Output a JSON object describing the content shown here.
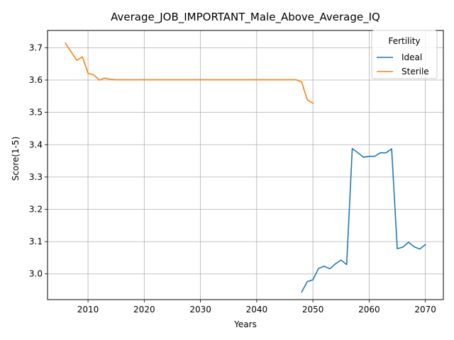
{
  "chart_data": {
    "type": "line",
    "title": "Average_JOB_IMPORTANT_Male_Above_Average_IQ",
    "xlabel": "Years",
    "ylabel": "Score(1-5)",
    "xlim": [
      2002.8,
      2073.2
    ],
    "ylim": [
      2.9205,
      3.7535
    ],
    "xticks": [
      2010,
      2020,
      2030,
      2040,
      2050,
      2060,
      2070
    ],
    "yticks": [
      3.0,
      3.1,
      3.2,
      3.3,
      3.4,
      3.5,
      3.6,
      3.7
    ],
    "ytick_labels": [
      "3.0",
      "3.1",
      "3.2",
      "3.3",
      "3.4",
      "3.5",
      "3.6",
      "3.7"
    ],
    "grid": true,
    "legend": {
      "title": "Fertility",
      "placement": "top-right"
    },
    "series": [
      {
        "name": "Ideal",
        "color": "#1f77b4",
        "x": [
          2048,
          2049,
          2050,
          2051,
          2052,
          2053,
          2054,
          2055,
          2056,
          2057,
          2058,
          2059,
          2060,
          2061,
          2062,
          2063,
          2064,
          2065,
          2066,
          2067,
          2068,
          2069,
          2070
        ],
        "y": [
          2.944,
          2.976,
          2.982,
          3.017,
          3.024,
          3.016,
          3.031,
          3.043,
          3.029,
          3.388,
          3.375,
          3.361,
          3.364,
          3.364,
          3.375,
          3.375,
          3.387,
          3.078,
          3.083,
          3.098,
          3.084,
          3.077,
          3.091
        ]
      },
      {
        "name": "Sterile",
        "color": "#ff7f0e",
        "x": [
          2006,
          2007,
          2008,
          2009,
          2010,
          2011,
          2012,
          2013,
          2014,
          2015,
          2016,
          2017,
          2018,
          2019,
          2020,
          2021,
          2022,
          2023,
          2024,
          2025,
          2026,
          2027,
          2028,
          2029,
          2030,
          2031,
          2032,
          2033,
          2034,
          2035,
          2036,
          2037,
          2038,
          2039,
          2040,
          2041,
          2042,
          2043,
          2044,
          2045,
          2046,
          2047,
          2048,
          2049,
          2050
        ],
        "y": [
          3.714,
          3.687,
          3.661,
          3.672,
          3.621,
          3.616,
          3.6,
          3.606,
          3.602,
          3.601,
          3.601,
          3.601,
          3.601,
          3.601,
          3.601,
          3.601,
          3.601,
          3.601,
          3.601,
          3.601,
          3.601,
          3.601,
          3.601,
          3.601,
          3.601,
          3.601,
          3.601,
          3.601,
          3.601,
          3.601,
          3.601,
          3.601,
          3.601,
          3.601,
          3.601,
          3.601,
          3.601,
          3.601,
          3.601,
          3.601,
          3.601,
          3.601,
          3.594,
          3.539,
          3.528
        ]
      }
    ]
  }
}
